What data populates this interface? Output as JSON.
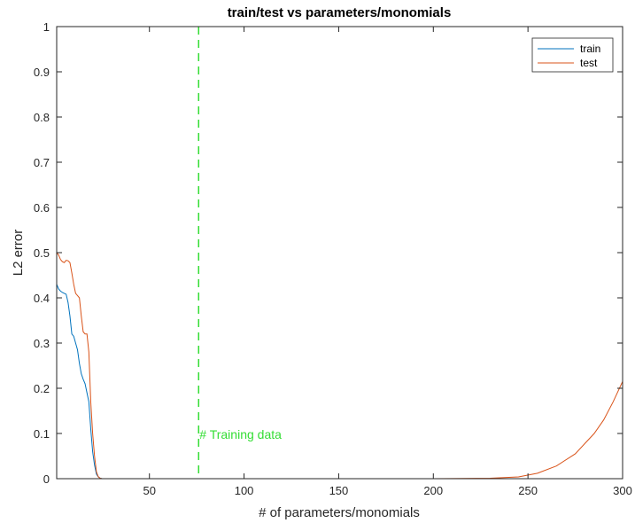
{
  "chart_data": {
    "type": "line",
    "title": "train/test vs parameters/monomials",
    "xlabel": "# of parameters/monomials",
    "ylabel": "L2 error",
    "xlim": [
      1,
      300
    ],
    "ylim": [
      0,
      1
    ],
    "xticks": [
      50,
      100,
      150,
      200,
      250,
      300
    ],
    "yticks": [
      0,
      0.1,
      0.2,
      0.3,
      0.4,
      0.5,
      0.6,
      0.7,
      0.8,
      0.9,
      1
    ],
    "xtick_labels": [
      "50",
      "100",
      "150",
      "200",
      "250",
      "300"
    ],
    "ytick_labels": [
      "0",
      "0.1",
      "0.2",
      "0.3",
      "0.4",
      "0.5",
      "0.6",
      "0.7",
      "0.8",
      "0.9",
      "1"
    ],
    "grid": false,
    "legend_position": "top-right",
    "series": [
      {
        "name": "train",
        "color": "#0072BD",
        "x": [
          1,
          2,
          3,
          4,
          5,
          6,
          7,
          8,
          9,
          10,
          11,
          12,
          13,
          14,
          15,
          16,
          17,
          18,
          19,
          20,
          21,
          22,
          23,
          24,
          25,
          26,
          27,
          28,
          29,
          30,
          40,
          60,
          100,
          150,
          200,
          250,
          300
        ],
        "y": [
          0.43,
          0.42,
          0.415,
          0.412,
          0.41,
          0.408,
          0.39,
          0.36,
          0.32,
          0.315,
          0.3,
          0.285,
          0.255,
          0.232,
          0.22,
          0.21,
          0.19,
          0.17,
          0.11,
          0.06,
          0.03,
          0.01,
          0.004,
          0.001,
          0.0,
          0.0,
          0.0,
          0.0,
          0.0,
          0.0,
          0.0,
          0.0,
          0.0,
          0.0,
          0.0,
          0.0,
          0.0
        ]
      },
      {
        "name": "test",
        "color": "#D95319",
        "x": [
          1,
          2,
          3,
          4,
          5,
          6,
          7,
          8,
          9,
          10,
          11,
          12,
          13,
          14,
          15,
          16,
          17,
          18,
          19,
          20,
          21,
          22,
          23,
          24,
          25,
          26,
          27,
          28,
          29,
          30,
          40,
          60,
          100,
          150,
          200,
          230,
          245,
          255,
          265,
          275,
          285,
          290,
          295,
          300
        ],
        "y": [
          0.5,
          0.495,
          0.485,
          0.48,
          0.478,
          0.483,
          0.482,
          0.478,
          0.455,
          0.43,
          0.41,
          0.405,
          0.4,
          0.36,
          0.325,
          0.32,
          0.32,
          0.28,
          0.17,
          0.1,
          0.05,
          0.015,
          0.004,
          0.001,
          0.0,
          0.0,
          0.0,
          0.0,
          0.0,
          0.0,
          0.0,
          0.0,
          0.0,
          0.0,
          0.0,
          0.001,
          0.004,
          0.012,
          0.028,
          0.055,
          0.1,
          0.13,
          0.17,
          0.215
        ]
      }
    ],
    "reference_line": {
      "x": 76,
      "color": "#33DD33",
      "style": "dashed",
      "label": "# Training data",
      "label_y": 0.1
    }
  }
}
